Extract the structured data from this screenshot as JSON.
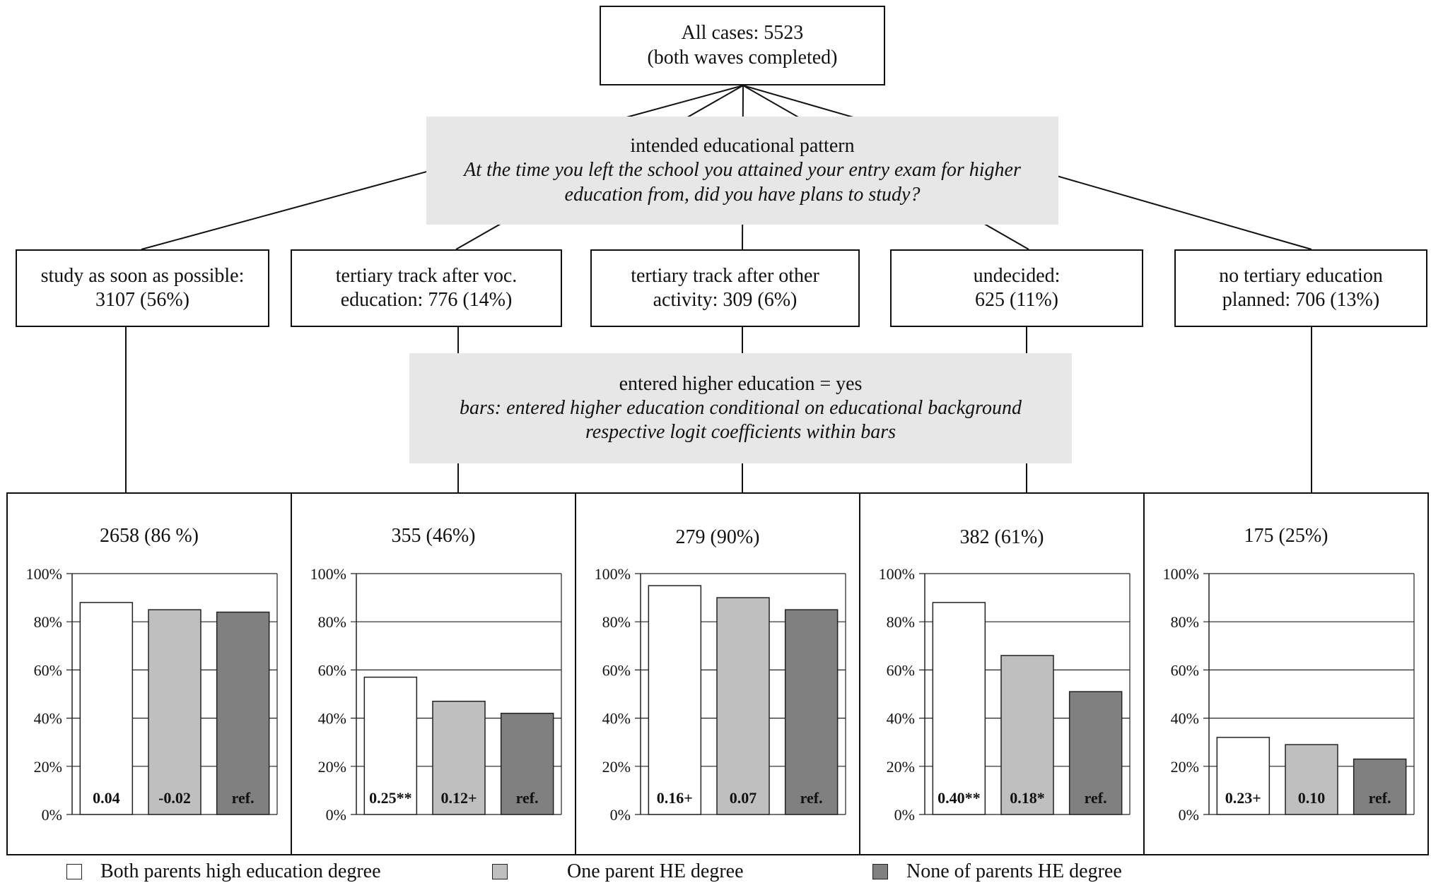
{
  "root": {
    "line1": "All cases: 5523",
    "line2": "(both waves completed)"
  },
  "question": {
    "title": "intended educational pattern",
    "text_line1": "At the time you left the school you attained your entry exam for higher",
    "text_line2": "education from, did you have plans to study?"
  },
  "categories": [
    {
      "line1": "study as soon as possible:",
      "line2": "3107 (56%)"
    },
    {
      "line1": "tertiary track after voc.",
      "line2": "education: 776 (14%)"
    },
    {
      "line1": "tertiary track after other",
      "line2": "activity: 309 (6%)"
    },
    {
      "line1": "undecided:",
      "line2": "625 (11%)"
    },
    {
      "line1": "no tertiary education",
      "line2": "planned: 706 (13%)"
    }
  ],
  "condition": {
    "title": "entered higher education = yes",
    "line1": "bars: entered higher education conditional on educational background",
    "line2": "respective logit coefficients within bars"
  },
  "colors": {
    "both": "#ffffff",
    "one": "#bfbfbf",
    "none": "#808080",
    "grid": "#222222"
  },
  "chart_data": [
    {
      "type": "bar",
      "title": "2658 (86 %)",
      "categories": [
        "Both parents high education degree",
        "One parent HE degree",
        "None of parents HE degree"
      ],
      "values": [
        88,
        85,
        84
      ],
      "labels": [
        "0.04",
        "-0.02",
        "ref."
      ],
      "ylim": [
        0,
        100
      ],
      "yticks": [
        "0%",
        "20%",
        "40%",
        "60%",
        "80%",
        "100%"
      ],
      "grid": true
    },
    {
      "type": "bar",
      "title": "355 (46%)",
      "categories": [
        "Both parents high education degree",
        "One parent HE degree",
        "None of parents HE degree"
      ],
      "values": [
        57,
        47,
        42
      ],
      "labels": [
        "0.25**",
        "0.12+",
        "ref."
      ],
      "ylim": [
        0,
        100
      ],
      "yticks": [
        "0%",
        "20%",
        "40%",
        "60%",
        "80%",
        "100%"
      ],
      "grid": true
    },
    {
      "type": "bar",
      "title": "279 (90%)",
      "categories": [
        "Both parents high education degree",
        "One parent HE degree",
        "None of parents HE degree"
      ],
      "values": [
        95,
        90,
        85
      ],
      "labels": [
        "0.16+",
        "0.07",
        "ref."
      ],
      "ylim": [
        0,
        100
      ],
      "yticks": [
        "0%",
        "20%",
        "40%",
        "60%",
        "80%",
        "100%"
      ],
      "grid": true
    },
    {
      "type": "bar",
      "title": "382 (61%)",
      "categories": [
        "Both parents high education degree",
        "One parent HE degree",
        "None of parents HE degree"
      ],
      "values": [
        88,
        66,
        51
      ],
      "labels": [
        "0.40**",
        "0.18*",
        "ref."
      ],
      "ylim": [
        0,
        100
      ],
      "yticks": [
        "0%",
        "20%",
        "40%",
        "60%",
        "80%",
        "100%"
      ],
      "grid": true
    },
    {
      "type": "bar",
      "title": "175 (25%)",
      "categories": [
        "Both parents high education degree",
        "One parent HE degree",
        "None of parents HE degree"
      ],
      "values": [
        32,
        29,
        23
      ],
      "labels": [
        "0.23+",
        "0.10",
        "ref."
      ],
      "ylim": [
        0,
        100
      ],
      "yticks": [
        "0%",
        "20%",
        "40%",
        "60%",
        "80%",
        "100%"
      ],
      "grid": true
    }
  ],
  "legend": [
    {
      "label": "Both parents high education degree",
      "color": "#ffffff"
    },
    {
      "label": "One parent HE degree",
      "color": "#bfbfbf"
    },
    {
      "label": "None of parents HE degree",
      "color": "#808080"
    }
  ]
}
